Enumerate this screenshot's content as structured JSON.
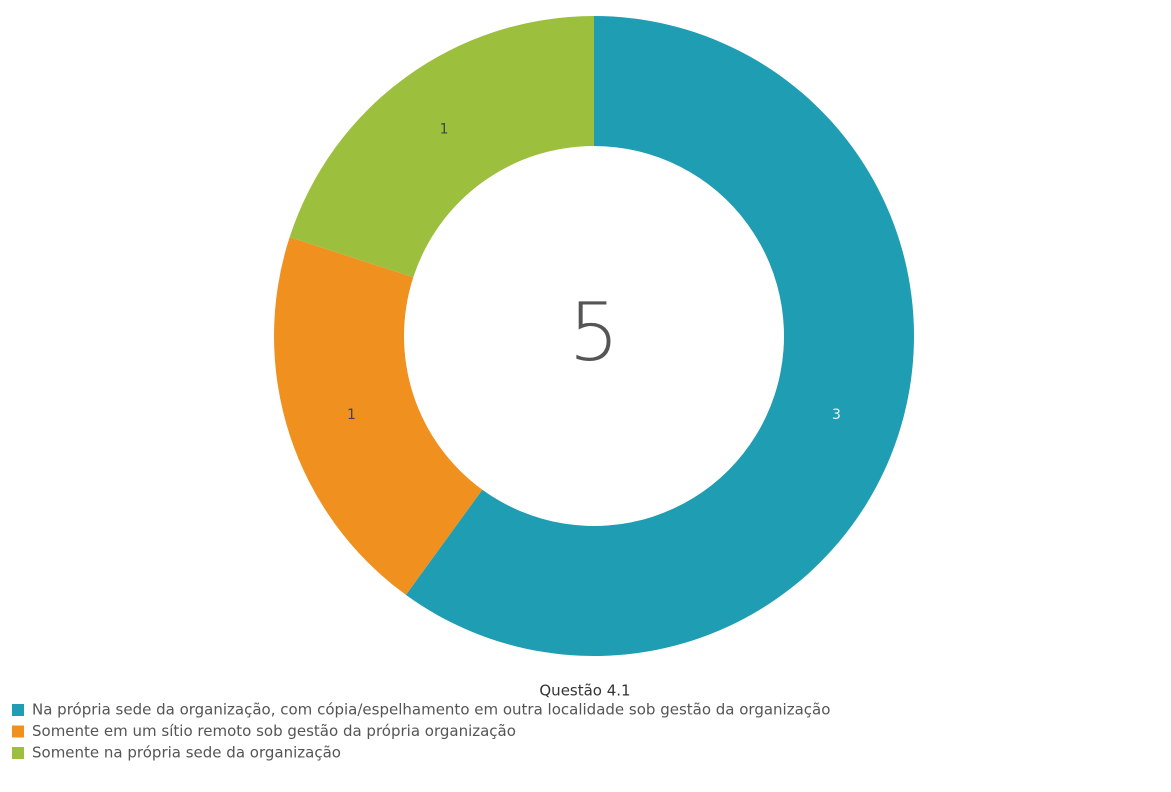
{
  "chart_data": {
    "type": "donut",
    "title": "Questão 4.1",
    "total": 5,
    "categories": [
      "Na própria sede da organização, com cópia/espelhamento em outra localidade sob gestão da organização",
      "Somente em um sítio remoto sob gestão da própria organização",
      "Somente na própria sede da organização"
    ],
    "values": [
      3,
      1,
      1
    ],
    "colors": [
      "#1f9db2",
      "#f0901f",
      "#9dbf3e"
    ]
  }
}
